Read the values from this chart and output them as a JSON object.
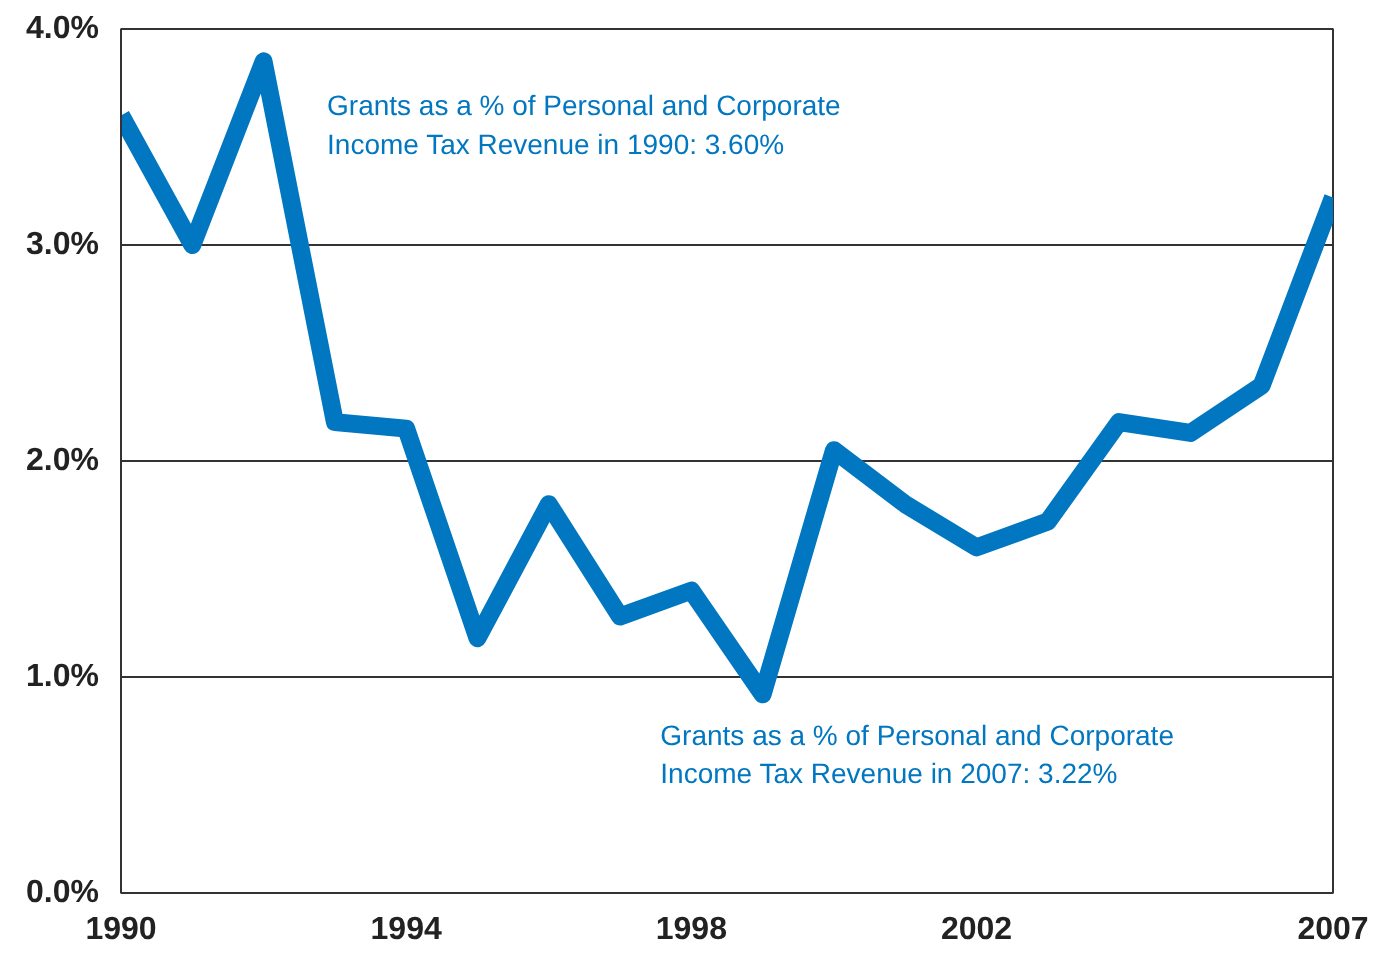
{
  "chart_data": {
    "type": "line",
    "x": [
      1990,
      1991,
      1992,
      1993,
      1994,
      1995,
      1996,
      1997,
      1998,
      1999,
      2000,
      2001,
      2002,
      2003,
      2004,
      2005,
      2006,
      2007
    ],
    "series": [
      {
        "color": "#0077c0",
        "values": [
          3.6,
          3.0,
          3.85,
          2.18,
          2.15,
          1.18,
          1.8,
          1.28,
          1.4,
          0.92,
          2.05,
          1.8,
          1.6,
          1.72,
          2.18,
          2.13,
          2.35,
          3.22
        ]
      }
    ],
    "xlim": [
      1990,
      2007
    ],
    "xticks": [
      1990,
      1994,
      1998,
      2002,
      2007
    ],
    "ylim": [
      0,
      4
    ],
    "yticks": [
      {
        "value": 0,
        "label": "0.0%"
      },
      {
        "value": 1,
        "label": "1.0%"
      },
      {
        "value": 2,
        "label": "2.0%"
      },
      {
        "value": 3,
        "label": "3.0%"
      },
      {
        "value": 4,
        "label": "4.0%"
      }
    ],
    "grid": "y",
    "marker": "none",
    "line_style": "solid",
    "annotations": [
      "Grants as a % of Personal and Corporate\nIncome Tax Revenue in 1990:  3.60%",
      "Grants as a % of Personal and Corporate\nIncome Tax Revenue in 2007:  3.22%"
    ]
  }
}
